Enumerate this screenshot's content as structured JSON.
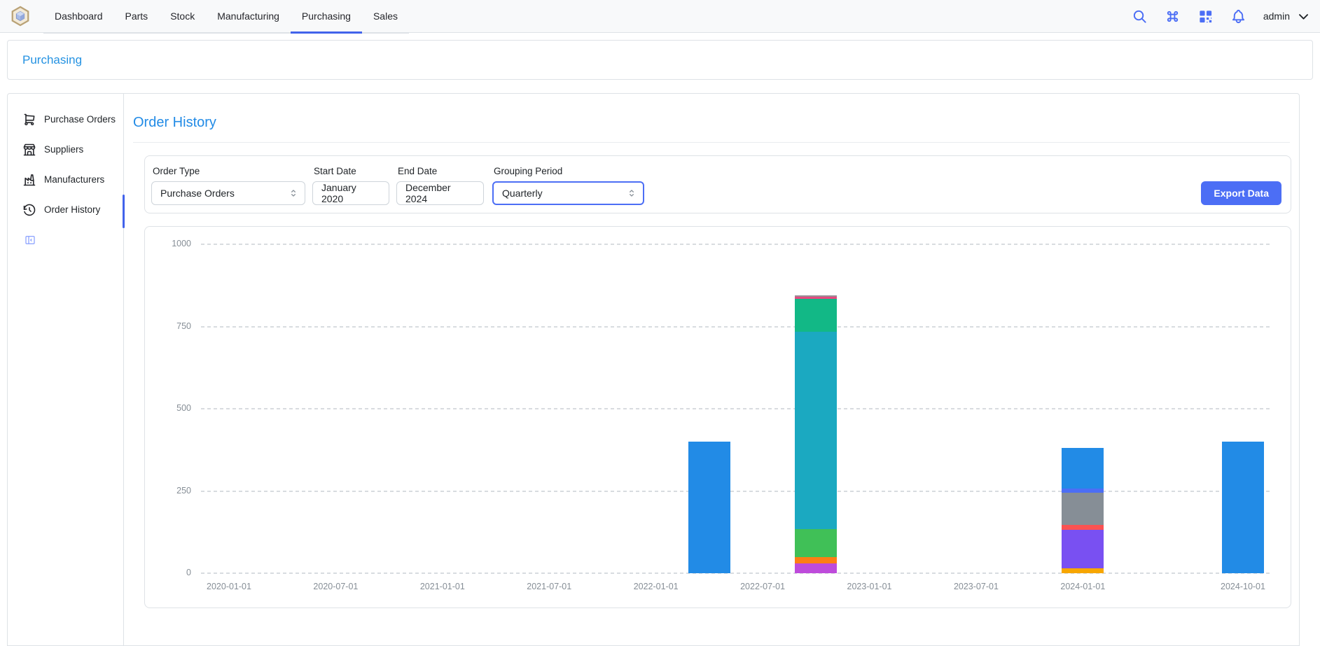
{
  "header": {
    "tabs": [
      {
        "label": "Dashboard"
      },
      {
        "label": "Parts"
      },
      {
        "label": "Stock"
      },
      {
        "label": "Manufacturing"
      },
      {
        "label": "Purchasing"
      },
      {
        "label": "Sales"
      }
    ],
    "active_tab": "Purchasing",
    "icons": [
      "search",
      "command-palette",
      "qr-scan",
      "notifications"
    ],
    "username": "admin",
    "icon_color": "#4c6ef5",
    "active_tab_color": "#4263eb"
  },
  "breadcrumb": {
    "label": "Purchasing"
  },
  "sidebar": {
    "items": [
      {
        "label": "Purchase Orders",
        "icon": "shopping-cart"
      },
      {
        "label": "Suppliers",
        "icon": "building-store"
      },
      {
        "label": "Manufacturers",
        "icon": "building-factory"
      },
      {
        "label": "Order History",
        "icon": "history",
        "active": true
      }
    ]
  },
  "main": {
    "title": "Order History",
    "filters": {
      "order_type": {
        "label": "Order Type",
        "value": "Purchase Orders",
        "type": "select"
      },
      "start_date": {
        "label": "Start Date",
        "value": "January 2020"
      },
      "end_date": {
        "label": "End Date",
        "value": "December 2024"
      },
      "grouping_period": {
        "label": "Grouping Period",
        "value": "Quarterly",
        "type": "select",
        "focused": true
      },
      "export_label": "Export Data"
    }
  },
  "chart_data": {
    "type": "bar",
    "stacked": true,
    "title": "",
    "xlabel": "",
    "ylabel": "",
    "legend": "none",
    "grid": {
      "horizontal": true,
      "style": "dashed"
    },
    "y_axis": {
      "ticks": [
        0,
        250,
        500,
        750,
        1000
      ],
      "range": [
        0,
        1000
      ]
    },
    "x_axis": {
      "ticks": [
        "2020-01-01",
        "2020-07-01",
        "2021-01-01",
        "2021-07-01",
        "2022-01-01",
        "2022-07-01",
        "2023-01-01",
        "2023-07-01",
        "2024-01-01",
        "2024-10-01"
      ],
      "range": [
        "2020-01-01",
        "2024-10-01"
      ]
    },
    "bars": [
      {
        "date": "2022-04-01",
        "total": 400,
        "segments": [
          {
            "name": "blue",
            "color": "#228be6",
            "value": 400
          }
        ]
      },
      {
        "date": "2022-10-01",
        "total": 845,
        "segments": [
          {
            "name": "grape",
            "color": "#be4bdb",
            "value": 30
          },
          {
            "name": "orange",
            "color": "#fd7e14",
            "value": 18
          },
          {
            "name": "green",
            "color": "#40c057",
            "value": 85
          },
          {
            "name": "cyan",
            "color": "#1ba9c1",
            "value": 600
          },
          {
            "name": "teal",
            "color": "#12b886",
            "value": 100
          },
          {
            "name": "pink",
            "color": "#e64980",
            "value": 7
          },
          {
            "name": "gray",
            "color": "#9b8e96",
            "value": 5
          }
        ]
      },
      {
        "date": "2024-01-01",
        "total": 381,
        "segments": [
          {
            "name": "yellow",
            "color": "#f7a600",
            "value": 15
          },
          {
            "name": "violet",
            "color": "#7950f2",
            "value": 117
          },
          {
            "name": "red",
            "color": "#fa5252",
            "value": 15
          },
          {
            "name": "gray",
            "color": "#868e96",
            "value": 97
          },
          {
            "name": "indigo",
            "color": "#4c6ef5",
            "value": 13
          },
          {
            "name": "blue",
            "color": "#228be6",
            "value": 124
          }
        ]
      },
      {
        "date": "2024-10-01",
        "total": 400,
        "segments": [
          {
            "name": "blue",
            "color": "#228be6",
            "value": 400
          }
        ]
      }
    ]
  }
}
